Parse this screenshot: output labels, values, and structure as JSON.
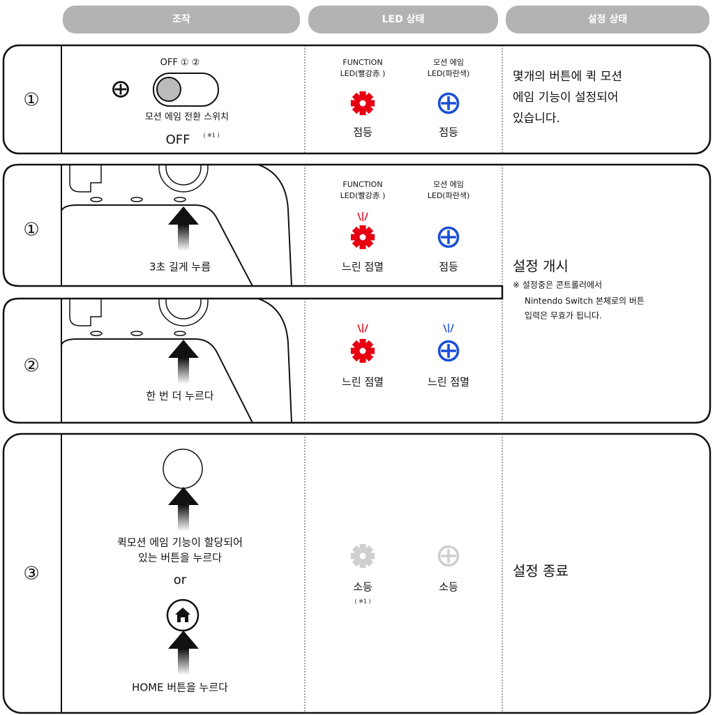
{
  "header": {
    "operation": "조작",
    "led": "LED 상태",
    "setting": "설정 상태"
  },
  "rows": [
    {
      "step": "①",
      "switch_positions": "OFF ① ②",
      "switch_label": "모션 에임 전환 스위치",
      "switch_state": "OFF",
      "switch_note": "( ※1 )",
      "function_led": [
        "FUNCTION",
        "LED(빨강赤 )"
      ],
      "motion_led": [
        "모션 에임",
        "LED(파란색)"
      ],
      "function_status": "점등",
      "motion_status": "점등",
      "setting": [
        "몇개의 버튼에 퀵 모션",
        "에임 기능이 설정되어",
        "있습니다."
      ]
    },
    {
      "step": "①",
      "action": "3초 길게 누름",
      "function_led": [
        "FUNCTION",
        "LED(빨강赤 )"
      ],
      "motion_led": [
        "모션 에임",
        "LED(파란색)"
      ],
      "function_status": "느린 점멸",
      "motion_status": "점등"
    },
    {
      "step": "②",
      "action": "한 번 더 누르다",
      "function_status": "느린 점멸",
      "motion_status": "느린 점멸"
    },
    {
      "step": "③",
      "action": [
        "퀵모션 에임 기능이 할당되어",
        "있는 버튼을 누르다"
      ],
      "or": "or",
      "home_action": "HOME 버튼을 누르다",
      "function_status": "소등",
      "function_note": "( ※1 )",
      "motion_status": "소등",
      "setting": "설정 종료"
    }
  ],
  "shared_setting": {
    "title": "설정 개시",
    "note": [
      "※ 설정중은 콘트롤러에서",
      "Nintendo Switch 본체로의 버튼",
      "입력은 무효가 됩니다."
    ]
  }
}
